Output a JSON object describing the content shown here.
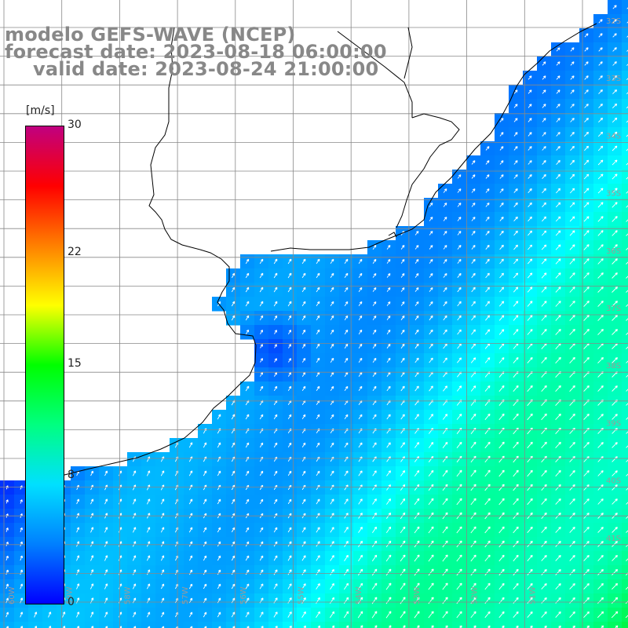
{
  "title": {
    "model": "modelo GEFS-WAVE (NCEP)",
    "forecast": "forecast date: 2023-08-18 06:00:00",
    "valid": "valid date: 2023-08-24 21:00:00"
  },
  "colorbar": {
    "unit": "[m/s]",
    "ticks": [
      {
        "label": "30",
        "value": 30
      },
      {
        "label": "22",
        "value": 22
      },
      {
        "label": "15",
        "value": 15
      },
      {
        "label": "8",
        "value": 8
      },
      {
        "label": "0",
        "value": 0
      }
    ],
    "colors": [
      "#0000ff",
      "#0080ff",
      "#00e0ff",
      "#00ff80",
      "#00ff00",
      "#ffff00",
      "#ff8000",
      "#ff0000",
      "#c00080"
    ]
  },
  "grid": {
    "lat_labels": [
      "32S",
      "33S",
      "34S",
      "35S",
      "36S",
      "37S",
      "38S",
      "39S",
      "40S",
      "41S"
    ],
    "lon_labels": [
      "60W",
      "59W",
      "58W",
      "57W",
      "56W",
      "55W",
      "54W",
      "53W",
      "52W",
      "51W"
    ]
  },
  "colors": {
    "land": "#ffffff",
    "grid_line": "#888888",
    "coast": "#000000",
    "arrow": "#ffffff"
  }
}
